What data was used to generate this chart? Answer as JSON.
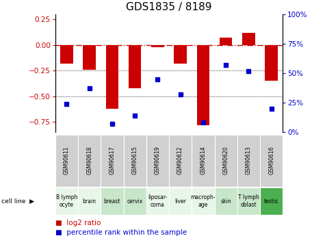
{
  "title": "GDS1835 / 8189",
  "samples": [
    "GSM90611",
    "GSM90618",
    "GSM90617",
    "GSM90615",
    "GSM90619",
    "GSM90612",
    "GSM90614",
    "GSM90620",
    "GSM90613",
    "GSM90616"
  ],
  "cell_texts": [
    "B lymph\nocyte",
    "brain",
    "breast",
    "cervix",
    "liposar-\ncoma",
    "liver",
    "macroph-\nage",
    "skin",
    "T lymph\noblast",
    "testis"
  ],
  "cell_colors": [
    "#e8f5e9",
    "#e8f5e9",
    "#c8e6c9",
    "#c8e6c9",
    "#e8f5e9",
    "#e8f5e9",
    "#e8f5e9",
    "#c8e6c9",
    "#c8e6c9",
    "#4caf50"
  ],
  "log2_ratio": [
    -0.18,
    -0.24,
    -0.62,
    -0.42,
    -0.02,
    -0.18,
    -0.78,
    0.07,
    0.12,
    -0.35
  ],
  "percentile_rank": [
    24,
    37,
    7,
    14,
    45,
    32,
    8,
    57,
    52,
    20
  ],
  "ylim_left": [
    -0.85,
    0.3
  ],
  "ylim_right": [
    0,
    100
  ],
  "yticks_left": [
    0.25,
    0.0,
    -0.25,
    -0.5,
    -0.75
  ],
  "yticks_right": [
    100,
    75,
    50,
    25,
    0
  ],
  "bar_color": "#cc0000",
  "dot_color": "#0000cc",
  "zero_line_color": "#cc0000",
  "grid_color": "#000000",
  "bar_width": 0.55,
  "title_fontsize": 11,
  "tick_fontsize": 7.5,
  "legend_fontsize": 7.5,
  "gsm_fontsize": 5.5,
  "cell_fontsize": 5.5
}
